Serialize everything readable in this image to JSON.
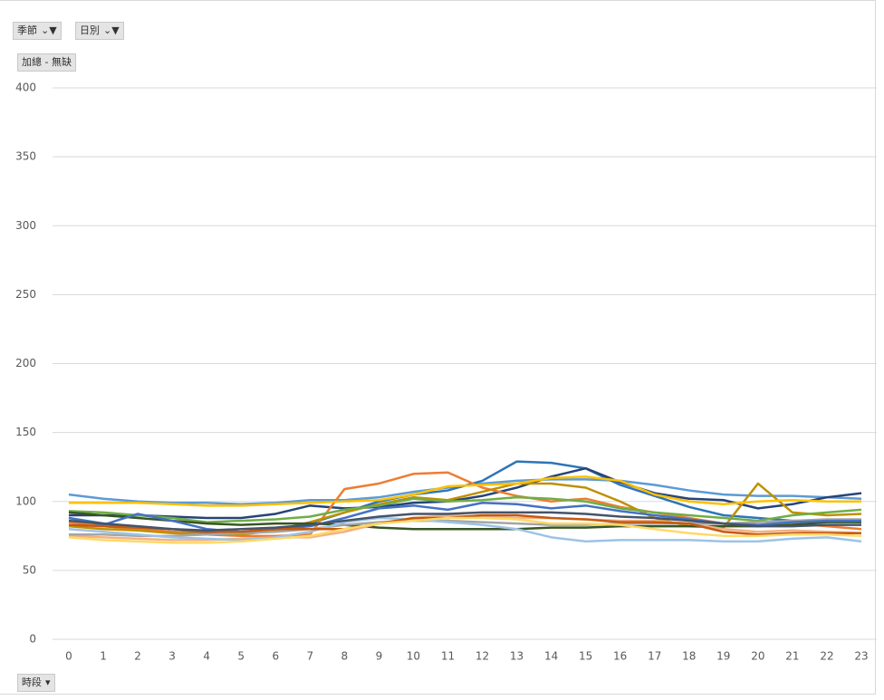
{
  "filters": {
    "season": "季節",
    "day": "日別",
    "field": "加總 - 無缺",
    "axis_field": "時段"
  },
  "chart_data": {
    "type": "line",
    "categories": [
      "0",
      "1",
      "2",
      "3",
      "4",
      "5",
      "6",
      "7",
      "8",
      "9",
      "10",
      "11",
      "12",
      "13",
      "14",
      "15",
      "16",
      "17",
      "18",
      "19",
      "20",
      "21",
      "22",
      "23"
    ],
    "ylim": [
      0,
      400
    ],
    "yticks": [
      0,
      50,
      100,
      150,
      200,
      250,
      300,
      350,
      400
    ],
    "grid": true,
    "series": [
      {
        "color": "#5b9bd5",
        "values": [
          105,
          102,
          100,
          99,
          99,
          98,
          99,
          101,
          101,
          103,
          107,
          110,
          113,
          115,
          116,
          116,
          115,
          112,
          108,
          105,
          104,
          104,
          103,
          102
        ]
      },
      {
        "color": "#2e75b6",
        "values": [
          88,
          84,
          80,
          78,
          77,
          77,
          79,
          84,
          92,
          100,
          105,
          108,
          115,
          129,
          128,
          124,
          112,
          104,
          96,
          90,
          88,
          86,
          86,
          85
        ]
      },
      {
        "color": "#264478",
        "values": [
          90,
          90,
          90,
          89,
          88,
          88,
          91,
          97,
          95,
          96,
          99,
          100,
          104,
          110,
          118,
          124,
          114,
          106,
          102,
          101,
          95,
          98,
          103,
          106
        ]
      },
      {
        "color": "#ed7d31",
        "values": [
          85,
          82,
          80,
          78,
          76,
          75,
          75,
          76,
          109,
          113,
          120,
          121,
          110,
          104,
          100,
          102,
          96,
          92,
          88,
          84,
          83,
          84,
          82,
          80
        ]
      },
      {
        "color": "#bf9000",
        "values": [
          82,
          80,
          79,
          77,
          76,
          76,
          79,
          85,
          92,
          98,
          103,
          101,
          107,
          113,
          113,
          110,
          100,
          88,
          82,
          81,
          113,
          92,
          90,
          91
        ]
      },
      {
        "color": "#ffc000",
        "values": [
          99,
          99,
          99,
          98,
          97,
          97,
          98,
          99,
          100,
          101,
          105,
          111,
          112,
          113,
          117,
          118,
          115,
          105,
          100,
          98,
          100,
          101,
          100,
          100
        ]
      },
      {
        "color": "#70ad47",
        "values": [
          93,
          92,
          90,
          88,
          85,
          86,
          87,
          89,
          94,
          97,
          102,
          100,
          101,
          103,
          102,
          100,
          95,
          92,
          90,
          88,
          86,
          90,
          92,
          94
        ]
      },
      {
        "color": "#375623",
        "values": [
          92,
          90,
          88,
          86,
          84,
          83,
          84,
          84,
          83,
          81,
          80,
          80,
          80,
          80,
          81,
          81,
          82,
          82,
          82,
          82,
          82,
          83,
          85,
          85
        ]
      },
      {
        "color": "#f4b183",
        "values": [
          75,
          74,
          73,
          72,
          72,
          73,
          74,
          74,
          78,
          84,
          88,
          90,
          89,
          88,
          88,
          87,
          86,
          86,
          84,
          80,
          78,
          79,
          78,
          77
        ]
      },
      {
        "color": "#a5a5a5",
        "values": [
          76,
          76,
          75,
          75,
          76,
          77,
          78,
          80,
          83,
          85,
          86,
          86,
          85,
          84,
          83,
          83,
          84,
          84,
          84,
          84,
          85,
          86,
          87,
          87
        ]
      },
      {
        "color": "#9dc3e6",
        "values": [
          80,
          78,
          76,
          74,
          73,
          72,
          74,
          78,
          85,
          88,
          87,
          85,
          83,
          80,
          74,
          71,
          72,
          72,
          72,
          71,
          71,
          73,
          74,
          71
        ]
      },
      {
        "color": "#4472c4",
        "values": [
          88,
          83,
          91,
          86,
          80,
          78,
          80,
          82,
          88,
          95,
          97,
          94,
          99,
          98,
          95,
          97,
          93,
          90,
          87,
          84,
          83,
          85,
          86,
          86
        ]
      },
      {
        "color": "#c55a11",
        "values": [
          83,
          82,
          81,
          80,
          78,
          78,
          80,
          80,
          80,
          84,
          88,
          88,
          90,
          90,
          88,
          87,
          85,
          85,
          84,
          78,
          76,
          77,
          77,
          77
        ]
      },
      {
        "color": "#ffd966",
        "values": [
          74,
          72,
          71,
          70,
          70,
          71,
          73,
          75,
          80,
          84,
          86,
          88,
          88,
          87,
          84,
          84,
          83,
          80,
          77,
          75,
          75,
          76,
          76,
          75
        ]
      },
      {
        "color": "#44546a",
        "values": [
          86,
          84,
          82,
          80,
          79,
          80,
          81,
          83,
          86,
          89,
          91,
          91,
          92,
          92,
          92,
          91,
          89,
          88,
          86,
          84,
          82,
          82,
          83,
          83
        ]
      }
    ]
  }
}
